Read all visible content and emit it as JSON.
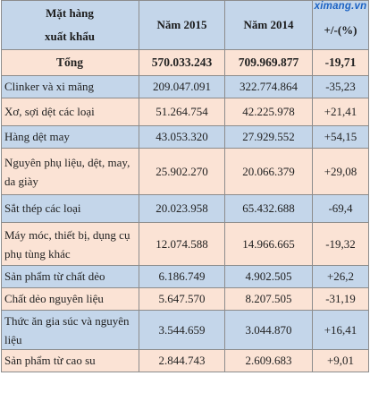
{
  "watermark": "ximang.vn",
  "table": {
    "headers": {
      "col1_line1": "Mặt hàng",
      "col1_line2": "xuất khẩu",
      "col2": "Năm 2015",
      "col3": "Năm 2014",
      "col4": "+/-(%)"
    },
    "total": {
      "label": "Tổng",
      "y2015": "570.033.243",
      "y2014": "709.969.877",
      "change": "-19,71"
    },
    "rows": [
      {
        "label": "Clinker và xi măng",
        "y2015": "209.047.091",
        "y2014": "322.774.864",
        "change": "-35,23"
      },
      {
        "label": "Xơ, sợi dệt các loại",
        "y2015": "51.264.754",
        "y2014": "42.225.978",
        "change": "+21,41"
      },
      {
        "label": "Hàng dệt may",
        "y2015": "43.053.320",
        "y2014": "27.929.552",
        "change": "+54,15"
      },
      {
        "label": "Nguyên phụ liệu, dệt, may, da giày",
        "y2015": "25.902.270",
        "y2014": "20.066.379",
        "change": "+29,08"
      },
      {
        "label": "Sắt thép các loại",
        "y2015": "20.023.958",
        "y2014": "65.432.688",
        "change": "-69,4"
      },
      {
        "label": "Máy móc, thiết bị, dụng cụ phụ tùng khác",
        "y2015": "12.074.588",
        "y2014": "14.966.665",
        "change": "-19,32"
      },
      {
        "label": "Sản phẩm từ chất dẻo",
        "y2015": "6.186.749",
        "y2014": "4.902.505",
        "change": "+26,2"
      },
      {
        "label": "Chất dẻo nguyên liệu",
        "y2015": "5.647.570",
        "y2014": "8.207.505",
        "change": "-31,19"
      },
      {
        "label": "Thức ăn gia súc và nguyên liệu",
        "y2015": "3.544.659",
        "y2014": "3.044.870",
        "change": "+16,41"
      },
      {
        "label": "Sản phẩm từ cao su",
        "y2015": "2.844.743",
        "y2014": "2.609.683",
        "change": "+9,01"
      }
    ]
  }
}
